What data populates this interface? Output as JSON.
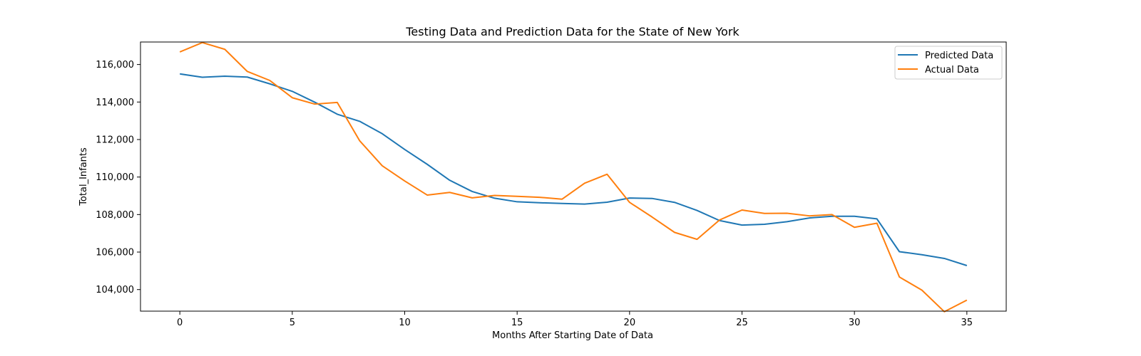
{
  "chart_data": {
    "type": "line",
    "title": "Testing Data and Prediction Data for the State of New York",
    "xlabel": "Months After Starting Date of Data",
    "ylabel": "Total_Infants",
    "xlim": [
      -1.75,
      36.75
    ],
    "ylim": [
      102850,
      117200
    ],
    "xticks": [
      0,
      5,
      10,
      15,
      20,
      25,
      30,
      35
    ],
    "xtick_labels": [
      "0",
      "5",
      "10",
      "15",
      "20",
      "25",
      "30",
      "35"
    ],
    "yticks": [
      104000,
      106000,
      108000,
      110000,
      112000,
      114000,
      116000
    ],
    "ytick_labels": [
      "104,000",
      "106,000",
      "108,000",
      "110,000",
      "112,000",
      "114,000",
      "116,000"
    ],
    "grid": false,
    "legend_position": "upper-right",
    "x": [
      0,
      1,
      2,
      3,
      4,
      5,
      6,
      7,
      8,
      9,
      10,
      11,
      12,
      13,
      14,
      15,
      16,
      17,
      18,
      19,
      20,
      21,
      22,
      23,
      24,
      25,
      26,
      27,
      28,
      29,
      30,
      31,
      32,
      33,
      34,
      35
    ],
    "series": [
      {
        "name": "Predicted Data",
        "color": "#1f77b4",
        "values": [
          115500,
          115320,
          115380,
          115330,
          114970,
          114570,
          113990,
          113350,
          112970,
          112310,
          111470,
          110680,
          109830,
          109230,
          108870,
          108680,
          108630,
          108590,
          108560,
          108660,
          108880,
          108860,
          108650,
          108220,
          107680,
          107440,
          107480,
          107620,
          107820,
          107910,
          107910,
          107770,
          106020,
          105860,
          105660,
          105280
        ]
      },
      {
        "name": "Actual Data",
        "color": "#ff7f0e",
        "values": [
          116670,
          117170,
          116810,
          115630,
          115150,
          114230,
          113890,
          113980,
          111930,
          110600,
          109790,
          109040,
          109180,
          108890,
          109020,
          108970,
          108920,
          108820,
          109670,
          110150,
          108650,
          107870,
          107050,
          106680,
          107710,
          108240,
          108060,
          108070,
          107930,
          108000,
          107320,
          107540,
          104670,
          103970,
          102820,
          103440
        ]
      }
    ]
  }
}
